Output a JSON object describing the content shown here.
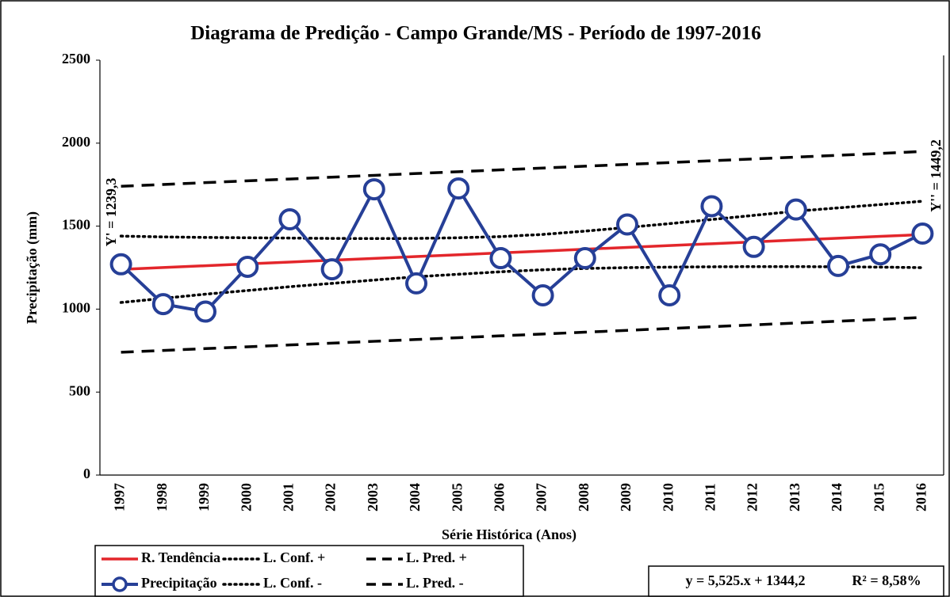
{
  "chart_data": {
    "type": "line",
    "title": "Diagrama de Predição - Campo Grande/MS - Período de 1997-2016",
    "xlabel": "Série Histórica (Anos)",
    "ylabel": "Precipitação (mm)",
    "categories": [
      "1997",
      "1998",
      "1999",
      "2000",
      "2001",
      "2002",
      "2003",
      "2004",
      "2005",
      "2006",
      "2007",
      "2008",
      "2009",
      "2010",
      "2011",
      "2012",
      "2013",
      "2014",
      "2015",
      "2016"
    ],
    "ylim": [
      0,
      2500
    ],
    "yticks": [
      0,
      500,
      1000,
      1500,
      2000,
      2500
    ],
    "series": [
      {
        "name": "R. Tendência",
        "color": "#e3262b",
        "style": "solid",
        "values": [
          1239.3,
          1250.35,
          1261.4,
          1272.45,
          1283.5,
          1294.55,
          1305.6,
          1316.65,
          1327.7,
          1338.75,
          1349.8,
          1360.85,
          1371.9,
          1382.95,
          1394,
          1405.05,
          1416.1,
          1427.15,
          1438.2,
          1449.2
        ]
      },
      {
        "name": "L. Conf. +",
        "color": "#000000",
        "style": "dotted",
        "values": [
          1440,
          1435,
          1432,
          1430,
          1428,
          1426,
          1425,
          1426,
          1430,
          1437,
          1450,
          1470,
          1492,
          1515,
          1540,
          1565,
          1590,
          1610,
          1630,
          1650
        ]
      },
      {
        "name": "L. Pred. +",
        "color": "#000000",
        "style": "dashed",
        "values": [
          1740,
          1751,
          1762,
          1773,
          1784,
          1795,
          1806,
          1817,
          1828,
          1839,
          1850,
          1861,
          1872,
          1883,
          1894,
          1905,
          1916,
          1927,
          1938,
          1950
        ]
      },
      {
        "name": "Precipitação",
        "color": "#263f97",
        "style": "solid",
        "marker": true,
        "values": [
          1270,
          1030,
          985,
          1255,
          1541,
          1240,
          1722,
          1155,
          1727,
          1307,
          1083,
          1307,
          1510,
          1083,
          1620,
          1375,
          1600,
          1260,
          1330,
          1455
        ]
      },
      {
        "name": "L. Conf. -",
        "color": "#000000",
        "style": "dotted",
        "values": [
          1040,
          1065,
          1090,
          1112,
          1135,
          1155,
          1175,
          1195,
          1210,
          1225,
          1237,
          1245,
          1250,
          1253,
          1255,
          1256,
          1256,
          1255,
          1253,
          1250
        ]
      },
      {
        "name": "L. Pred. -",
        "color": "#000000",
        "style": "dashed",
        "values": [
          740,
          751,
          762,
          773,
          784,
          795,
          806,
          817,
          828,
          839,
          850,
          861,
          872,
          883,
          894,
          905,
          916,
          927,
          938,
          950
        ]
      }
    ],
    "annotations": [
      "Y' = 1239,3",
      "Y'' = 1449,2",
      "y = 5,525.x + 1344,2",
      "R² = 8,58%"
    ]
  }
}
